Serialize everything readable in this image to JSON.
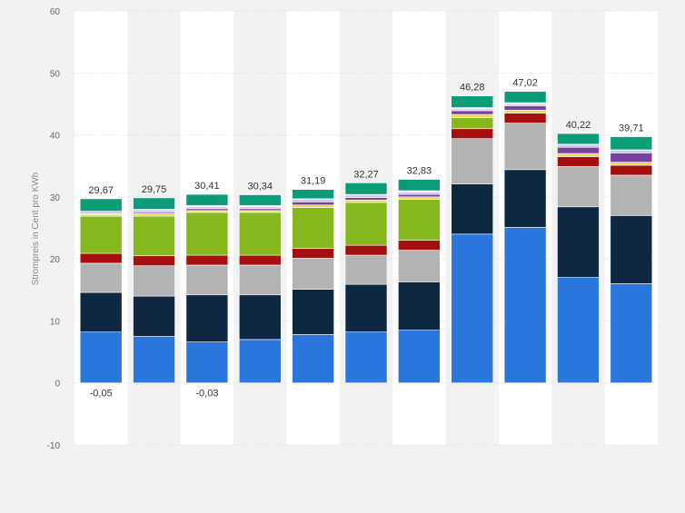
{
  "chart_data": {
    "type": "bar",
    "stacked": true,
    "ylabel": "Strompreis in Cent pro KWh",
    "ylim": [
      -10,
      60
    ],
    "yticks": [
      60,
      50,
      40,
      30,
      20,
      10,
      0,
      -10
    ],
    "grid": true,
    "categories": [
      "",
      "",
      "",
      "",
      "",
      "",
      "",
      "",
      "",
      "",
      ""
    ],
    "totals": [
      "29,67",
      "29,75",
      "30,41",
      "30,34",
      "31,19",
      "32,27",
      "32,83",
      "46,28",
      "47,02",
      "40,22",
      "39,71"
    ],
    "negative_labels": [
      "-0,05",
      "",
      "-0,03",
      "",
      "",
      "",
      "",
      "",
      "",
      "",
      ""
    ],
    "series": [
      {
        "color": "#2a76dd",
        "values": [
          8.2,
          7.5,
          6.6,
          7.0,
          7.8,
          8.2,
          8.5,
          24.0,
          25.1,
          17.0,
          16.0
        ]
      },
      {
        "color": "#0e2841",
        "values": [
          6.4,
          6.5,
          7.6,
          7.2,
          7.3,
          7.7,
          7.8,
          8.1,
          9.3,
          11.4,
          11.0
        ]
      },
      {
        "color": "#b3b3b3",
        "values": [
          4.7,
          4.9,
          4.8,
          4.8,
          5.0,
          4.7,
          5.1,
          7.3,
          7.5,
          6.5,
          6.5
        ]
      },
      {
        "color": "#a50f0f",
        "values": [
          1.6,
          1.6,
          1.6,
          1.6,
          1.6,
          1.6,
          1.6,
          1.6,
          1.6,
          1.6,
          1.6
        ]
      },
      {
        "color": "#86b81e",
        "values": [
          6.0,
          6.4,
          6.9,
          6.9,
          6.6,
          6.9,
          6.6,
          1.8,
          0.0,
          0.0,
          0.0
        ]
      },
      {
        "color": "#e6d85a",
        "values": [
          0.3,
          0.4,
          0.3,
          0.3,
          0.4,
          0.4,
          0.4,
          0.5,
          0.5,
          0.5,
          0.5
        ]
      },
      {
        "color": "#7b3fa0",
        "values": [
          0.1,
          0.2,
          0.3,
          0.3,
          0.5,
          0.4,
          0.4,
          0.6,
          0.7,
          1.0,
          1.5
        ]
      },
      {
        "color": "#c9c9f0",
        "values": [
          0.4,
          0.4,
          0.3,
          0.3,
          0.4,
          0.4,
          0.4,
          0.3,
          0.3,
          0.4,
          0.4
        ]
      },
      {
        "color": "#ffffff",
        "values": [
          0.0,
          0.1,
          0.2,
          0.2,
          0.1,
          0.1,
          0.2,
          0.2,
          0.2,
          0.1,
          0.1
        ]
      },
      {
        "color": "#0c9c7a",
        "values": [
          2.0,
          1.85,
          1.81,
          1.74,
          1.49,
          1.86,
          1.83,
          1.88,
          1.82,
          1.72,
          2.11
        ]
      }
    ]
  }
}
